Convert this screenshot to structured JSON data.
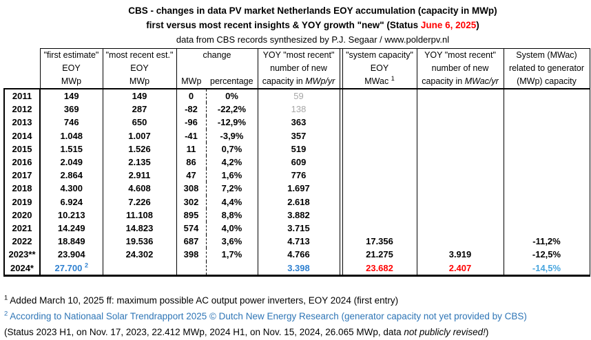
{
  "title": {
    "line1": "CBS - changes in data PV market Netherlands EOY accumulation (capacity in MWp)",
    "line2_prefix": "first versus most recent insights & YOY growth \"new\" (Status ",
    "line2_date": "June 6, 2025",
    "line2_suffix": ")",
    "line3": "data from CBS records synthesized by P.J. Segaar / www.polderpv.nl"
  },
  "colors": {
    "accent_red": "#ff0000",
    "data_blue": "#2e80d0",
    "light_blue": "#47a5de",
    "footnote_blue": "#2e75b6",
    "muted_gray": "#a6a6a6"
  },
  "table": {
    "cell_names": [
      "first-estimate-cell",
      "most-recent-cell",
      "change-mwp-cell",
      "change-pct-cell",
      "yoy-mwp-cell",
      "system-capacity-cell",
      "yoy-mwac-cell",
      "system-related-cell"
    ],
    "headers": {
      "first_estimate": {
        "l1": "\"first estimate\"",
        "l2": "EOY",
        "l3": "MWp"
      },
      "most_recent": {
        "l1": "\"most recent est.\"",
        "l2": "EOY",
        "l3": "MWp"
      },
      "change": {
        "label": "change",
        "sub1": "MWp",
        "sub2": "percentage"
      },
      "yoy_mwp": {
        "l1": "YOY \"most recent\"",
        "l2": "number  of new",
        "l3_prefix": "capacity in ",
        "l3_unit": "MWp/yr"
      },
      "system_capacity": {
        "l1": "\"system capacity\"",
        "l2": "EOY",
        "l3": "MWac",
        "l3_sup": "1"
      },
      "yoy_mwac": {
        "l1": "YOY \"most recent\"",
        "l2": "number of new",
        "l3_prefix": "capacity in ",
        "l3_unit": "MWac/yr"
      },
      "system_related": {
        "l1": "System (MWac)",
        "l2": "related to generator",
        "l3": "(MWp) capacity"
      }
    },
    "rows": [
      {
        "year": "2011",
        "cells": [
          {
            "v": "149"
          },
          {
            "v": "149"
          },
          {
            "v": "0"
          },
          {
            "v": "0%"
          },
          {
            "v": "59",
            "cls": "gray"
          },
          {
            "v": ""
          },
          {
            "v": ""
          },
          {
            "v": ""
          }
        ]
      },
      {
        "year": "2012",
        "cells": [
          {
            "v": "369"
          },
          {
            "v": "287"
          },
          {
            "v": "-82"
          },
          {
            "v": "-22,2%"
          },
          {
            "v": "138",
            "cls": "gray"
          },
          {
            "v": ""
          },
          {
            "v": ""
          },
          {
            "v": ""
          }
        ]
      },
      {
        "year": "2013",
        "cells": [
          {
            "v": "746"
          },
          {
            "v": "650"
          },
          {
            "v": "-96"
          },
          {
            "v": "-12,9%"
          },
          {
            "v": "363"
          },
          {
            "v": ""
          },
          {
            "v": ""
          },
          {
            "v": ""
          }
        ]
      },
      {
        "year": "2014",
        "cells": [
          {
            "v": "1.048"
          },
          {
            "v": "1.007"
          },
          {
            "v": "-41"
          },
          {
            "v": "-3,9%"
          },
          {
            "v": "357"
          },
          {
            "v": ""
          },
          {
            "v": ""
          },
          {
            "v": ""
          }
        ]
      },
      {
        "year": "2015",
        "cells": [
          {
            "v": "1.515"
          },
          {
            "v": "1.526"
          },
          {
            "v": "11"
          },
          {
            "v": "0,7%"
          },
          {
            "v": "519"
          },
          {
            "v": ""
          },
          {
            "v": ""
          },
          {
            "v": ""
          }
        ]
      },
      {
        "year": "2016",
        "cells": [
          {
            "v": "2.049"
          },
          {
            "v": "2.135"
          },
          {
            "v": "86"
          },
          {
            "v": "4,2%"
          },
          {
            "v": "609"
          },
          {
            "v": ""
          },
          {
            "v": ""
          },
          {
            "v": ""
          }
        ]
      },
      {
        "year": "2017",
        "cells": [
          {
            "v": "2.864"
          },
          {
            "v": "2.911"
          },
          {
            "v": "47"
          },
          {
            "v": "1,6%"
          },
          {
            "v": "776"
          },
          {
            "v": ""
          },
          {
            "v": ""
          },
          {
            "v": ""
          }
        ]
      },
      {
        "year": "2018",
        "cells": [
          {
            "v": "4.300"
          },
          {
            "v": "4.608"
          },
          {
            "v": "308"
          },
          {
            "v": "7,2%"
          },
          {
            "v": "1.697"
          },
          {
            "v": ""
          },
          {
            "v": ""
          },
          {
            "v": ""
          }
        ]
      },
      {
        "year": "2019",
        "cells": [
          {
            "v": "6.924"
          },
          {
            "v": "7.226"
          },
          {
            "v": "302"
          },
          {
            "v": "4,4%"
          },
          {
            "v": "2.618"
          },
          {
            "v": ""
          },
          {
            "v": ""
          },
          {
            "v": ""
          }
        ]
      },
      {
        "year": "2020",
        "cells": [
          {
            "v": "10.213"
          },
          {
            "v": "11.108"
          },
          {
            "v": "895"
          },
          {
            "v": "8,8%"
          },
          {
            "v": "3.882"
          },
          {
            "v": ""
          },
          {
            "v": ""
          },
          {
            "v": ""
          }
        ]
      },
      {
        "year": "2021",
        "cells": [
          {
            "v": "14.249"
          },
          {
            "v": "14.823"
          },
          {
            "v": "574"
          },
          {
            "v": "4,0%"
          },
          {
            "v": "3.715"
          },
          {
            "v": ""
          },
          {
            "v": ""
          },
          {
            "v": ""
          }
        ]
      },
      {
        "year": "2022",
        "cells": [
          {
            "v": "18.849"
          },
          {
            "v": "19.536"
          },
          {
            "v": "687"
          },
          {
            "v": "3,6%"
          },
          {
            "v": "4.713"
          },
          {
            "v": "17.356"
          },
          {
            "v": ""
          },
          {
            "v": "-11,2%"
          }
        ]
      },
      {
        "year": "2023**",
        "cells": [
          {
            "v": "23.904"
          },
          {
            "v": "24.302"
          },
          {
            "v": "398"
          },
          {
            "v": "1,7%"
          },
          {
            "v": "4.766"
          },
          {
            "v": "21.275"
          },
          {
            "v": "3.919"
          },
          {
            "v": "-12,5%"
          }
        ]
      },
      {
        "year": "2024*",
        "cells": [
          {
            "v": "27.700",
            "sup": "2",
            "cls": "blue"
          },
          {
            "v": ""
          },
          {
            "v": ""
          },
          {
            "v": ""
          },
          {
            "v": "3.398",
            "cls": "blue"
          },
          {
            "v": "23.682",
            "cls": "red"
          },
          {
            "v": "2.407",
            "cls": "red"
          },
          {
            "v": "-14,5%",
            "cls": "lightblue"
          }
        ]
      }
    ]
  },
  "footnotes": {
    "fn1": {
      "marker": "1",
      "text": " Added March 10, 2025 ff: maximum possible AC output power inverters, EOY 2024 (first entry)"
    },
    "fn2": {
      "marker": "2",
      "text": " According to Nationaal Solar Trendrapport 2025 © Dutch New Energy Research (generator capacity not yet provided by CBS)"
    },
    "fn3": {
      "prefix": "(Status 2023 H1, on Nov. 17, 2023, 22.412 MWp,  2024 H1, on Nov. 15, 2024, 26.065 MWp, data ",
      "italic": "not publicly revised!",
      "suffix": ")"
    }
  },
  "chart_data": {
    "type": "table",
    "title": "CBS - changes in data PV market Netherlands EOY accumulation (capacity in MWp)",
    "subtitle": "first versus most recent insights & YOY growth \"new\" (Status June 6, 2025)",
    "source": "data from CBS records synthesized by P.J. Segaar / www.polderpv.nl",
    "columns": [
      "year",
      "first estimate EOY MWp",
      "most recent est. EOY MWp",
      "change MWp",
      "change percentage",
      "YOY most recent number of new capacity MWp/yr",
      "system capacity EOY MWac",
      "YOY most recent number of new capacity MWac/yr",
      "System (MWac) related to generator (MWp) capacity"
    ],
    "rows": [
      [
        "2011",
        149,
        149,
        0,
        "0%",
        59,
        null,
        null,
        null
      ],
      [
        "2012",
        369,
        287,
        -82,
        "-22,2%",
        138,
        null,
        null,
        null
      ],
      [
        "2013",
        746,
        650,
        -96,
        "-12,9%",
        363,
        null,
        null,
        null
      ],
      [
        "2014",
        1048,
        1007,
        -41,
        "-3,9%",
        357,
        null,
        null,
        null
      ],
      [
        "2015",
        1515,
        1526,
        11,
        "0,7%",
        519,
        null,
        null,
        null
      ],
      [
        "2016",
        2049,
        2135,
        86,
        "4,2%",
        609,
        null,
        null,
        null
      ],
      [
        "2017",
        2864,
        2911,
        47,
        "1,6%",
        776,
        null,
        null,
        null
      ],
      [
        "2018",
        4300,
        4608,
        308,
        "7,2%",
        1697,
        null,
        null,
        null
      ],
      [
        "2019",
        6924,
        7226,
        302,
        "4,4%",
        2618,
        null,
        null,
        null
      ],
      [
        "2020",
        10213,
        11108,
        895,
        "8,8%",
        3882,
        null,
        null,
        null
      ],
      [
        "2021",
        14249,
        14823,
        574,
        "4,0%",
        3715,
        null,
        null,
        null
      ],
      [
        "2022",
        18849,
        19536,
        687,
        "3,6%",
        4713,
        17356,
        null,
        "-11,2%"
      ],
      [
        "2023**",
        23904,
        24302,
        398,
        "1,7%",
        4766,
        21275,
        3919,
        "-12,5%"
      ],
      [
        "2024*",
        27700,
        null,
        null,
        null,
        3398,
        23682,
        2407,
        "-14,5%"
      ]
    ]
  }
}
